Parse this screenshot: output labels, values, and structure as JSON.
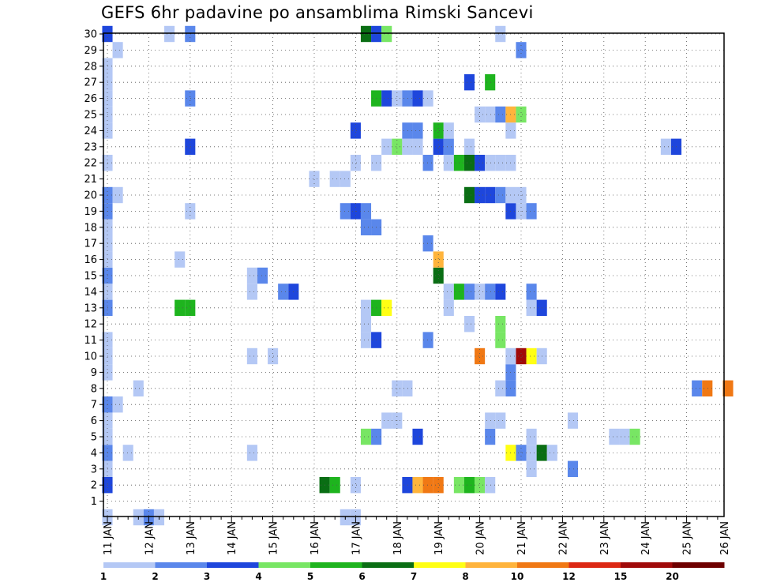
{
  "chart_data": {
    "type": "heatmap",
    "title": "GEFS 6hr padavine po ansamblima Rimski Sancevi",
    "x_labels": [
      "11 JAN",
      "12 JAN",
      "13 JAN",
      "14 JAN",
      "15 JAN",
      "16 JAN",
      "17 JAN",
      "18 JAN",
      "19 JAN",
      "20 JAN",
      "21 JAN",
      "22 JAN",
      "23 JAN",
      "24 JAN",
      "25 JAN",
      "26 JAN"
    ],
    "x_step": "6hr",
    "y_labels": [
      "1",
      "2",
      "3",
      "4",
      "5",
      "6",
      "7",
      "8",
      "9",
      "10",
      "11",
      "12",
      "13",
      "14",
      "15",
      "16",
      "17",
      "18",
      "19",
      "20",
      "21",
      "22",
      "23",
      "24",
      "25",
      "26",
      "27",
      "28",
      "29",
      "30"
    ],
    "grid": true,
    "legend": {
      "placement": "bottom",
      "labels": [
        "1",
        "2",
        "3",
        "4",
        "5",
        "6",
        "7",
        "8",
        "10",
        "12",
        "15",
        "20"
      ],
      "colors": [
        "#b4c8f5",
        "#5a87eb",
        "#1e46dc",
        "#78e664",
        "#1eb41e",
        "#0a6e14",
        "#ffff14",
        "#ffb43c",
        "#f07814",
        "#dc2814",
        "#a00a0a",
        "#6e0000"
      ]
    },
    "cells": [
      [
        0,
        0,
        1
      ],
      [
        3,
        0,
        1
      ],
      [
        4,
        0,
        2
      ],
      [
        5,
        0,
        1
      ],
      [
        23,
        0,
        1
      ],
      [
        24,
        0,
        1
      ],
      [
        0,
        2,
        3
      ],
      [
        24,
        2,
        1
      ],
      [
        21,
        2,
        6
      ],
      [
        22,
        2,
        5
      ],
      [
        29,
        2,
        3
      ],
      [
        30,
        2,
        8
      ],
      [
        31,
        2,
        9
      ],
      [
        32,
        2,
        9
      ],
      [
        34,
        2,
        4
      ],
      [
        35,
        2,
        5
      ],
      [
        36,
        2,
        4
      ],
      [
        37,
        2,
        1
      ],
      [
        0,
        3,
        1
      ],
      [
        41,
        3,
        1
      ],
      [
        45,
        3,
        2
      ],
      [
        0,
        4,
        2
      ],
      [
        2,
        4,
        1
      ],
      [
        14,
        4,
        1
      ],
      [
        39,
        4,
        7
      ],
      [
        40,
        4,
        2
      ],
      [
        41,
        4,
        1
      ],
      [
        42,
        4,
        6
      ],
      [
        43,
        4,
        1
      ],
      [
        0,
        5,
        1
      ],
      [
        37,
        5,
        2
      ],
      [
        41,
        5,
        1
      ],
      [
        49,
        5,
        1
      ],
      [
        50,
        5,
        1
      ],
      [
        25,
        5,
        4
      ],
      [
        26,
        5,
        2
      ],
      [
        30,
        5,
        3
      ],
      [
        51,
        5,
        4
      ],
      [
        0,
        6,
        1
      ],
      [
        27,
        6,
        1
      ],
      [
        28,
        6,
        1
      ],
      [
        37,
        6,
        1
      ],
      [
        38,
        6,
        1
      ],
      [
        45,
        6,
        1
      ],
      [
        0,
        7,
        2
      ],
      [
        1,
        7,
        1
      ],
      [
        3,
        8,
        1
      ],
      [
        39,
        8,
        2
      ],
      [
        60,
        8,
        9
      ],
      [
        28,
        8,
        1
      ],
      [
        29,
        8,
        1
      ],
      [
        38,
        8,
        1
      ],
      [
        57,
        8,
        2
      ],
      [
        58,
        8,
        9
      ],
      [
        0,
        9,
        1
      ],
      [
        39,
        9,
        2
      ],
      [
        0,
        10,
        1
      ],
      [
        14,
        10,
        1
      ],
      [
        16,
        10,
        1
      ],
      [
        36,
        10,
        9
      ],
      [
        39,
        10,
        1
      ],
      [
        40,
        10,
        11
      ],
      [
        41,
        10,
        7
      ],
      [
        42,
        10,
        1
      ],
      [
        0,
        11,
        1
      ],
      [
        25,
        11,
        1
      ],
      [
        26,
        11,
        3
      ],
      [
        31,
        11,
        2
      ],
      [
        38,
        11,
        4
      ],
      [
        25,
        12,
        1
      ],
      [
        35,
        12,
        1
      ],
      [
        38,
        12,
        4
      ],
      [
        0,
        13,
        2
      ],
      [
        7,
        13,
        5
      ],
      [
        8,
        13,
        5
      ],
      [
        25,
        13,
        1
      ],
      [
        26,
        13,
        5
      ],
      [
        27,
        13,
        7
      ],
      [
        33,
        13,
        1
      ],
      [
        41,
        13,
        1
      ],
      [
        42,
        13,
        3
      ],
      [
        0,
        14,
        1
      ],
      [
        14,
        14,
        1
      ],
      [
        17,
        14,
        2
      ],
      [
        18,
        14,
        3
      ],
      [
        33,
        14,
        1
      ],
      [
        34,
        14,
        5
      ],
      [
        35,
        14,
        2
      ],
      [
        36,
        14,
        1
      ],
      [
        37,
        14,
        2
      ],
      [
        38,
        14,
        3
      ],
      [
        41,
        14,
        2
      ],
      [
        0,
        15,
        2
      ],
      [
        14,
        15,
        1
      ],
      [
        15,
        15,
        2
      ],
      [
        32,
        15,
        6
      ],
      [
        0,
        16,
        1
      ],
      [
        7,
        16,
        1
      ],
      [
        32,
        16,
        8
      ],
      [
        0,
        17,
        1
      ],
      [
        31,
        17,
        2
      ],
      [
        0,
        18,
        1
      ],
      [
        25,
        18,
        2
      ],
      [
        26,
        18,
        2
      ],
      [
        0,
        19,
        2
      ],
      [
        8,
        19,
        1
      ],
      [
        23,
        19,
        2
      ],
      [
        24,
        19,
        3
      ],
      [
        25,
        19,
        2
      ],
      [
        39,
        19,
        3
      ],
      [
        40,
        19,
        1
      ],
      [
        41,
        19,
        2
      ],
      [
        0,
        20,
        2
      ],
      [
        1,
        20,
        1
      ],
      [
        35,
        20,
        6
      ],
      [
        36,
        20,
        3
      ],
      [
        37,
        20,
        3
      ],
      [
        38,
        20,
        2
      ],
      [
        39,
        20,
        1
      ],
      [
        40,
        20,
        1
      ],
      [
        20,
        21,
        1
      ],
      [
        22,
        21,
        1
      ],
      [
        23,
        21,
        1
      ],
      [
        0,
        22,
        1
      ],
      [
        24,
        22,
        1
      ],
      [
        26,
        22,
        1
      ],
      [
        31,
        22,
        2
      ],
      [
        33,
        22,
        1
      ],
      [
        34,
        22,
        5
      ],
      [
        35,
        22,
        6
      ],
      [
        36,
        22,
        3
      ],
      [
        37,
        22,
        1
      ],
      [
        38,
        22,
        1
      ],
      [
        39,
        22,
        1
      ],
      [
        8,
        23,
        3
      ],
      [
        27,
        23,
        1
      ],
      [
        28,
        23,
        4
      ],
      [
        29,
        23,
        1
      ],
      [
        30,
        23,
        1
      ],
      [
        32,
        23,
        3
      ],
      [
        33,
        23,
        2
      ],
      [
        35,
        23,
        1
      ],
      [
        54,
        23,
        1
      ],
      [
        55,
        23,
        3
      ],
      [
        0,
        24,
        1
      ],
      [
        24,
        24,
        3
      ],
      [
        29,
        24,
        2
      ],
      [
        30,
        24,
        2
      ],
      [
        32,
        24,
        5
      ],
      [
        33,
        24,
        1
      ],
      [
        39,
        24,
        1
      ],
      [
        0,
        25,
        1
      ],
      [
        36,
        25,
        1
      ],
      [
        37,
        25,
        1
      ],
      [
        38,
        25,
        2
      ],
      [
        39,
        25,
        8
      ],
      [
        40,
        25,
        4
      ],
      [
        0,
        26,
        1
      ],
      [
        8,
        26,
        2
      ],
      [
        26,
        26,
        5
      ],
      [
        27,
        26,
        3
      ],
      [
        28,
        26,
        1
      ],
      [
        29,
        26,
        2
      ],
      [
        30,
        26,
        3
      ],
      [
        31,
        26,
        1
      ],
      [
        0,
        27,
        1
      ],
      [
        35,
        27,
        3
      ],
      [
        37,
        27,
        5
      ],
      [
        0,
        28,
        1
      ],
      [
        1,
        29,
        1
      ],
      [
        40,
        29,
        2
      ],
      [
        0,
        30,
        3
      ],
      [
        6,
        30,
        1
      ],
      [
        8,
        30,
        2
      ],
      [
        25,
        30,
        6
      ],
      [
        26,
        30,
        3
      ],
      [
        27,
        30,
        4
      ],
      [
        38,
        30,
        1
      ]
    ]
  }
}
